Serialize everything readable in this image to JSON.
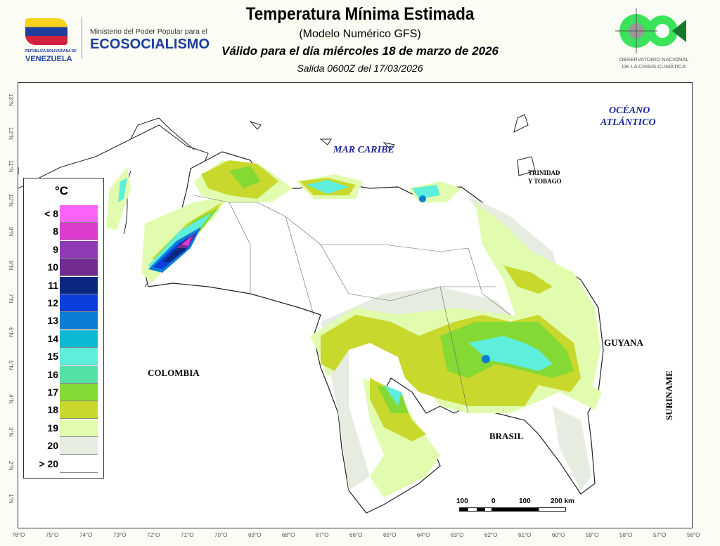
{
  "header": {
    "title": "Temperatura Mínima Estimada",
    "subtitle": "(Modelo Numérico GFS)",
    "valid": "Válido para el día miércoles 18 de marzo de 2026",
    "salida": "Salida 0600Z del 17/03/2026"
  },
  "logo_left": {
    "small": "REPÚBLICA BOLIVARIANA DE",
    "country": "VENEZUELA",
    "ministry": "Ministerio del Poder Popular para el",
    "name": "ECOSOCIALISMO"
  },
  "logo_right": {
    "line1": "OBSERVATORIO NACIONAL",
    "line2": "DE LA CRISIS CLIMÁTICA"
  },
  "map_labels": {
    "caribe": "MAR CARIBE",
    "oceano1": "OCÉANO",
    "oceano2": "ATLÁNTICO",
    "trinidad1": "TRINIDAD",
    "trinidad2": "Y TOBAGO",
    "colombia": "COLOMBIA",
    "brasil": "BRASIL",
    "guyana": "GUYANA",
    "suriname": "SURINAME"
  },
  "legend": {
    "unit": "°C",
    "items": [
      {
        "label": "< 8",
        "color": "#fb62f6"
      },
      {
        "label": "8",
        "color": "#dc3ccc"
      },
      {
        "label": "9",
        "color": "#8e3bb5"
      },
      {
        "label": "10",
        "color": "#732b92"
      },
      {
        "label": "11",
        "color": "#0b2880"
      },
      {
        "label": "12",
        "color": "#0a3fdc"
      },
      {
        "label": "13",
        "color": "#0c7cd7"
      },
      {
        "label": "14",
        "color": "#0ab9d3"
      },
      {
        "label": "15",
        "color": "#5deedc"
      },
      {
        "label": "16",
        "color": "#55e1a6"
      },
      {
        "label": "17",
        "color": "#85d934"
      },
      {
        "label": "18",
        "color": "#c8d82d"
      },
      {
        "label": "19",
        "color": "#e1fcae"
      },
      {
        "label": "20",
        "color": "#e7ece0"
      },
      {
        "label": "> 20",
        "color": "#ffffff"
      }
    ]
  },
  "scale": {
    "l0": "100",
    "l1": "0",
    "l2": "100",
    "l3": "200 km"
  },
  "lon_ticks": [
    "76°O",
    "75°O",
    "74°O",
    "73°O",
    "72°O",
    "71°O",
    "70°O",
    "69°O",
    "68°O",
    "67°O",
    "66°O",
    "65°O",
    "64°O",
    "63°O",
    "62°O",
    "61°O",
    "60°O",
    "59°O",
    "58°O",
    "57°O",
    "56°O"
  ],
  "lat_ticks": [
    "13°N",
    "12°N",
    "11°N",
    "10°N",
    "9°N",
    "8°N",
    "7°N",
    "6°N",
    "5°N",
    "4°N",
    "3°N",
    "2°N",
    "1°N"
  ]
}
